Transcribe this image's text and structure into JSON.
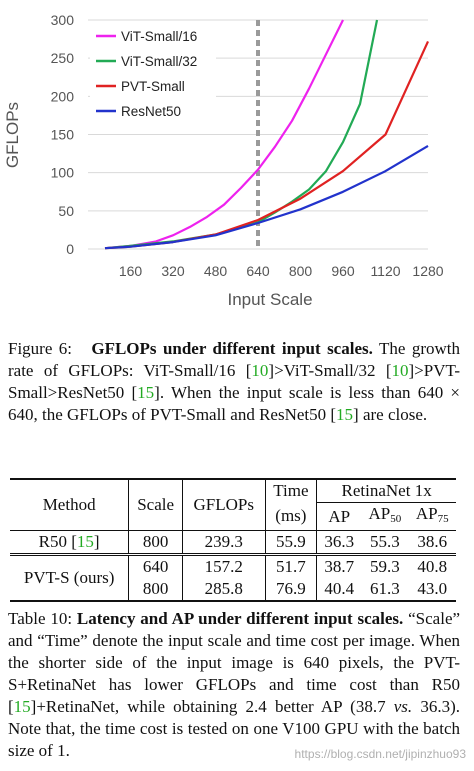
{
  "chart_data": {
    "type": "line",
    "ylabel": "GFLOPs",
    "xlabel": "Input Scale",
    "xlim": [
      0,
      1280
    ],
    "ylim": [
      0,
      300
    ],
    "x_ticks": [
      "160",
      "320",
      "480",
      "640",
      "800",
      "960",
      "1120",
      "1280"
    ],
    "y_ticks": [
      "0",
      "50",
      "100",
      "150",
      "200",
      "250",
      "300"
    ],
    "reference_line_x": 640,
    "legend_position": "top-left",
    "series": [
      {
        "name": "ViT-Small/16",
        "color": "#ee22ee",
        "x": [
          64,
          160,
          256,
          320,
          384,
          448,
          512,
          576,
          640,
          704,
          768,
          832,
          896,
          960
        ],
        "y": [
          1,
          4,
          10,
          18,
          29,
          42,
          58,
          80,
          104,
          134,
          168,
          210,
          255,
          300
        ]
      },
      {
        "name": "ViT-Small/32",
        "color": "#22aa55",
        "x": [
          64,
          160,
          320,
          480,
          640,
          704,
          768,
          832,
          896,
          960,
          1024,
          1088
        ],
        "y": [
          1,
          4,
          10,
          19,
          35,
          48,
          62,
          78,
          102,
          140,
          190,
          300
        ]
      },
      {
        "name": "PVT-Small",
        "color": "#e02222",
        "x": [
          64,
          160,
          320,
          480,
          640,
          800,
          960,
          1120,
          1280
        ],
        "y": [
          1,
          3,
          9,
          19,
          38,
          66,
          102,
          150,
          272
        ]
      },
      {
        "name": "ResNet50",
        "color": "#2233cc",
        "x": [
          64,
          160,
          320,
          480,
          640,
          800,
          960,
          1120,
          1280
        ],
        "y": [
          1,
          3,
          9,
          18,
          34,
          52,
          75,
          102,
          135
        ]
      }
    ]
  },
  "figure6": {
    "caption_lead": "Figure 6:",
    "caption_bold": "GFLOPs under different input scales.",
    "caption_p1": "The growth rate of GFLOPs: ViT-Small/16 [",
    "ref_a": "10",
    "caption_p2": "]>ViT-Small/32 [",
    "ref_b": "10",
    "caption_p3": "]>PVT-Small>ResNet50 [",
    "ref_c": "15",
    "caption_p4": "]. When the input scale is less than 640 × 640, the GFLOPs of PVT-Small and ResNet50 [",
    "ref_d": "15",
    "caption_p5": "] are close."
  },
  "table10": {
    "headers": {
      "method": "Method",
      "scale": "Scale",
      "gflops": "GFLOPs",
      "time": "Time",
      "time_unit": "(ms)",
      "group": "RetinaNet 1x",
      "ap": "AP",
      "ap_prefix": "AP",
      "ap50_sub": "50",
      "ap75_sub": "75"
    },
    "row_r50": {
      "method": "R50 [",
      "ref": "15",
      "method_end": "]",
      "scale": "800",
      "gflops": "239.3",
      "time": "55.9",
      "ap": "36.3",
      "ap50": "55.3",
      "ap75": "38.6"
    },
    "row_pvt": {
      "method": "PVT-S (ours)",
      "r1": {
        "scale": "640",
        "gflops": "157.2",
        "time": "51.7",
        "ap": "38.7",
        "ap50": "59.3",
        "ap75": "40.8"
      },
      "r2": {
        "scale": "800",
        "gflops": "285.8",
        "time": "76.9",
        "ap": "40.4",
        "ap50": "61.3",
        "ap75": "43.0"
      }
    }
  },
  "table10_caption": {
    "lead": "Table 10:",
    "bold": "Latency and AP under different input scales.",
    "p1": "“Scale” and “Time” denote the input scale and time cost per image. When the shorter side of the input image is 640 pixels, the PVT-S+RetinaNet has lower GFLOPs and time cost than R50 [",
    "ref": "15",
    "p2": "]+RetinaNet, while obtaining 2.4 better AP (38.7",
    "vs": "vs.",
    "p3": "36.3). Note that, the time cost is tested on one V100 GPU with the batch size of 1."
  },
  "watermark": "https://blog.csdn.net/jipinzhuo93"
}
